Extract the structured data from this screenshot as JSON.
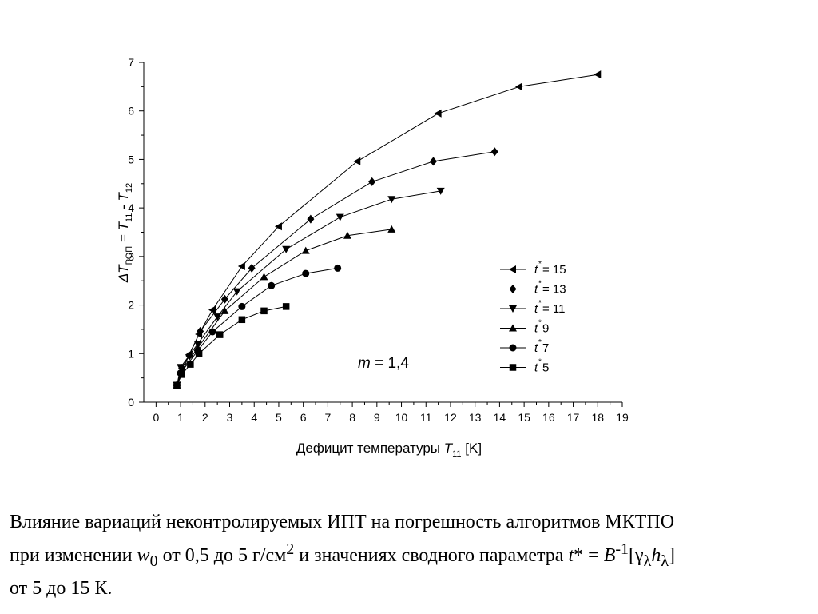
{
  "chart_data": {
    "type": "line",
    "xlabel": "Дефицит температуры",
    "xlabel_var": "T",
    "xlabel_sub": "11",
    "xlabel_unit": "[K]",
    "ylabel_parts": [
      "ΔT",
      "РОП",
      " = ",
      "T",
      "11",
      " - ",
      "T",
      "12"
    ],
    "xlim": [
      -0.5,
      19
    ],
    "ylim": [
      0,
      7
    ],
    "x_ticks": [
      0,
      1,
      2,
      3,
      4,
      5,
      6,
      7,
      8,
      9,
      10,
      11,
      12,
      13,
      14,
      15,
      16,
      17,
      18,
      19
    ],
    "y_ticks": [
      0,
      1,
      2,
      3,
      4,
      5,
      6,
      7
    ],
    "annotation": {
      "var": "m",
      "text": " = 1,4"
    },
    "legend_var": "t",
    "legend_star": "*",
    "legend_placement": "right",
    "grid": false,
    "series": [
      {
        "name": "= 15",
        "marker": "triangle-left",
        "x": [
          0.85,
          1.05,
          1.35,
          1.75,
          2.3,
          3.5,
          5.0,
          8.2,
          11.5,
          14.8,
          18.0
        ],
        "y": [
          0.35,
          0.6,
          0.98,
          1.4,
          1.9,
          2.8,
          3.62,
          4.96,
          5.95,
          6.5,
          6.75
        ]
      },
      {
        "name": "= 13",
        "marker": "diamond",
        "x": [
          0.85,
          1.05,
          1.35,
          1.8,
          2.8,
          3.9,
          6.3,
          8.8,
          11.3,
          13.8
        ],
        "y": [
          0.35,
          0.7,
          0.96,
          1.46,
          2.12,
          2.76,
          3.77,
          4.54,
          4.96,
          5.16
        ]
      },
      {
        "name": "= 11",
        "marker": "triangle-down",
        "x": [
          0.85,
          1.0,
          1.7,
          2.5,
          3.3,
          5.3,
          7.5,
          9.6,
          11.6
        ],
        "y": [
          0.35,
          0.72,
          1.2,
          1.76,
          2.28,
          3.15,
          3.81,
          4.18,
          4.35
        ]
      },
      {
        "name": "9",
        "marker": "triangle-up",
        "x": [
          0.85,
          1.0,
          1.7,
          2.8,
          4.4,
          6.1,
          7.8,
          9.6
        ],
        "y": [
          0.35,
          0.62,
          1.12,
          1.88,
          2.58,
          3.12,
          3.43,
          3.56
        ]
      },
      {
        "name": "7",
        "marker": "circle",
        "x": [
          0.85,
          1.0,
          1.7,
          2.3,
          3.5,
          4.7,
          6.1,
          7.4
        ],
        "y": [
          0.35,
          0.6,
          1.06,
          1.45,
          1.97,
          2.4,
          2.65,
          2.76
        ]
      },
      {
        "name": "5",
        "marker": "square",
        "x": [
          0.85,
          1.05,
          1.4,
          1.75,
          2.6,
          3.5,
          4.4,
          5.3
        ],
        "y": [
          0.35,
          0.57,
          0.78,
          1.0,
          1.39,
          1.7,
          1.88,
          1.97
        ]
      }
    ]
  },
  "caption": {
    "l1": "Влияние вариаций неконтролируемых ИПТ на погрешность алгоритмов МКТПО",
    "l2_a": "при изменении ",
    "l2_w": "w",
    "l2_w_sub": "0",
    "l2_b": " от 0,5 до 5 г/см",
    "l2_sup": "2",
    "l2_c": " и значениях сводного параметра ",
    "l2_t": "t",
    "l2_d": "* = ",
    "l2_B": "B",
    "l2_B_sup": "-1",
    "l2_e": "[γ",
    "l2_lambda1": "λ",
    "l2_h": "h",
    "l2_lambda2": "λ",
    "l2_f": "]",
    "l3": "от 5 до 15 К."
  }
}
